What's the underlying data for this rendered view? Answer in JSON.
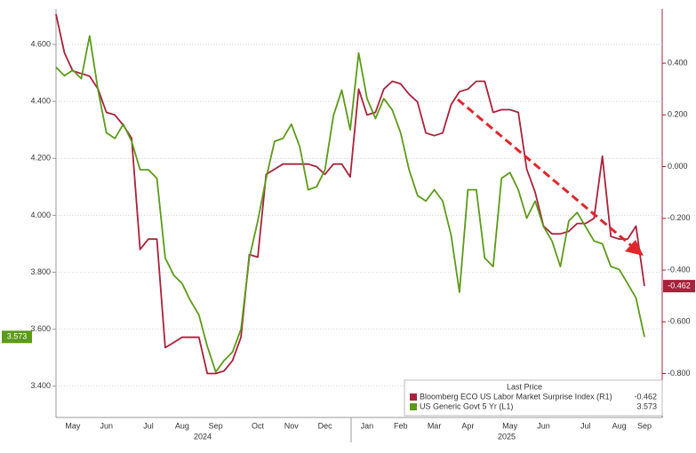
{
  "chart_data": {
    "type": "line",
    "categories": [
      null,
      null,
      "May",
      null,
      null,
      null,
      "Jun",
      null,
      null,
      null,
      null,
      "Jul",
      null,
      null,
      null,
      "Aug",
      null,
      null,
      null,
      "Sep",
      null,
      null,
      null,
      null,
      "Oct",
      null,
      null,
      null,
      "Nov",
      null,
      null,
      null,
      "Dec",
      null,
      null,
      null,
      null,
      "Jan",
      null,
      null,
      null,
      "Feb",
      null,
      null,
      null,
      "Mar",
      null,
      null,
      null,
      "Apr",
      null,
      null,
      null,
      null,
      "May",
      null,
      null,
      null,
      "Jun",
      null,
      null,
      null,
      null,
      "Jul",
      null,
      null,
      null,
      "Aug",
      null,
      null,
      "Sep"
    ],
    "x_group_labels": [
      "2024",
      "2025"
    ],
    "series": [
      {
        "name": "Bloomberg ECO US Labor Market Surprise Index  (R1)",
        "color": "#a8223c",
        "axis": "y2",
        "last_label": "-0.462",
        "values": [
          0.59,
          0.44,
          0.37,
          0.36,
          0.35,
          0.3,
          0.21,
          0.2,
          0.16,
          0.11,
          -0.32,
          -0.28,
          -0.28,
          -0.7,
          -0.68,
          -0.66,
          -0.66,
          -0.66,
          -0.8,
          -0.8,
          -0.79,
          -0.75,
          -0.66,
          -0.34,
          -0.35,
          -0.03,
          -0.01,
          0.01,
          0.01,
          0.01,
          0.01,
          0.0,
          -0.03,
          0.01,
          0.01,
          -0.04,
          0.3,
          0.2,
          0.21,
          0.3,
          0.33,
          0.32,
          0.28,
          0.25,
          0.13,
          0.12,
          0.13,
          0.24,
          0.29,
          0.3,
          0.33,
          0.33,
          0.21,
          0.22,
          0.22,
          0.21,
          -0.01,
          -0.1,
          -0.23,
          -0.26,
          -0.26,
          -0.25,
          -0.22,
          -0.22,
          -0.2,
          0.04,
          -0.27,
          -0.28,
          -0.28,
          -0.23,
          -0.462
        ]
      },
      {
        "name": "US Generic Govt 5 Yr  (L1)",
        "color": "#5c9a1b",
        "last_label": "3.573",
        "values": [
          4.52,
          4.49,
          4.51,
          4.48,
          4.63,
          4.44,
          4.29,
          4.27,
          4.32,
          4.26,
          4.16,
          4.16,
          4.13,
          3.85,
          3.79,
          3.76,
          3.7,
          3.65,
          3.54,
          3.45,
          3.49,
          3.52,
          3.6,
          3.85,
          3.98,
          4.13,
          4.26,
          4.27,
          4.32,
          4.24,
          4.09,
          4.1,
          4.16,
          4.35,
          4.44,
          4.3,
          4.57,
          4.41,
          4.34,
          4.41,
          4.37,
          4.29,
          4.16,
          4.07,
          4.05,
          4.09,
          4.05,
          3.93,
          3.73,
          4.09,
          4.09,
          3.85,
          3.82,
          4.13,
          4.15,
          4.09,
          3.99,
          4.05,
          3.96,
          3.91,
          3.82,
          3.98,
          4.01,
          3.96,
          3.91,
          3.9,
          3.82,
          3.81,
          3.76,
          3.71,
          3.573
        ]
      }
    ],
    "legend_title": "Last Price",
    "ylim": [
      3.29,
      4.725
    ],
    "yticks": [
      {
        "value": 3.4,
        "label": "3.400"
      },
      {
        "value": 3.6,
        "label": "3.600"
      },
      {
        "value": 3.8,
        "label": "3.800"
      },
      {
        "value": 4.0,
        "label": "4.000"
      },
      {
        "value": 4.2,
        "label": "4.200"
      },
      {
        "value": 4.4,
        "label": "4.400"
      },
      {
        "value": 4.6,
        "label": "4.600"
      }
    ],
    "y2lim": [
      -0.97,
      0.61
    ],
    "y2ticks": [
      {
        "value": -0.8,
        "label": "-0.800"
      },
      {
        "value": -0.6,
        "label": "-0.600"
      },
      {
        "value": -0.4,
        "label": "-0.400"
      },
      {
        "value": -0.2,
        "label": "-0.200"
      },
      {
        "value": 0.0,
        "label": "0.000"
      },
      {
        "value": 0.2,
        "label": "0.200"
      },
      {
        "value": 0.4,
        "label": "0.400"
      }
    ],
    "grid": true
  }
}
